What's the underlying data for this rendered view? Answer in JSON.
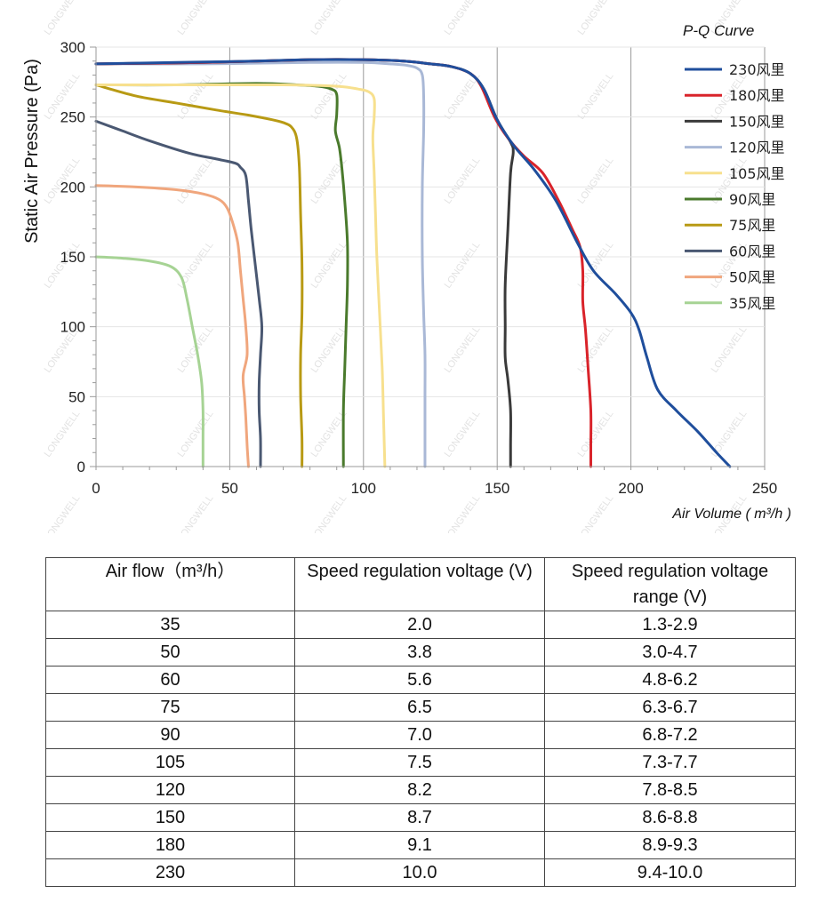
{
  "chart_data": {
    "type": "line",
    "title": "P-Q Curve",
    "xlabel": "Air Volume ( m³/h )",
    "ylabel": "Static Air Pressure  (Pa)",
    "xlim": [
      0,
      250
    ],
    "ylim": [
      0,
      300
    ],
    "x_ticks": [
      0,
      50,
      100,
      150,
      200,
      250
    ],
    "y_ticks": [
      0,
      50,
      100,
      150,
      200,
      250,
      300
    ],
    "grid": "vertical lines at x ticks",
    "legend_position": "right",
    "series": [
      {
        "name": "230风里",
        "color": "#1f4e9c",
        "points": [
          [
            0,
            288
          ],
          [
            30,
            289
          ],
          [
            60,
            290
          ],
          [
            80,
            291
          ],
          [
            100,
            291
          ],
          [
            115,
            290
          ],
          [
            125,
            288
          ],
          [
            133,
            286
          ],
          [
            140,
            281
          ],
          [
            145,
            270
          ],
          [
            150,
            248
          ],
          [
            156,
            230
          ],
          [
            164,
            212
          ],
          [
            172,
            190
          ],
          [
            180,
            160
          ],
          [
            186,
            140
          ],
          [
            194,
            124
          ],
          [
            200,
            110
          ],
          [
            203,
            98
          ],
          [
            206,
            78
          ],
          [
            210,
            55
          ],
          [
            217,
            40
          ],
          [
            225,
            25
          ],
          [
            232,
            10
          ],
          [
            237,
            0
          ]
        ]
      },
      {
        "name": "180风里",
        "color": "#d9232a",
        "points": [
          [
            0,
            288
          ],
          [
            40,
            289
          ],
          [
            80,
            291
          ],
          [
            100,
            291
          ],
          [
            115,
            290
          ],
          [
            125,
            288
          ],
          [
            133,
            286
          ],
          [
            140,
            281
          ],
          [
            144,
            272
          ],
          [
            149,
            250
          ],
          [
            154,
            235
          ],
          [
            160,
            222
          ],
          [
            167,
            210
          ],
          [
            173,
            190
          ],
          [
            178,
            170
          ],
          [
            181,
            157
          ],
          [
            182,
            140
          ],
          [
            182,
            118
          ],
          [
            183,
            98
          ],
          [
            184,
            70
          ],
          [
            185,
            40
          ],
          [
            185,
            15
          ],
          [
            185,
            0
          ]
        ]
      },
      {
        "name": "150风里",
        "color": "#3a3a3a",
        "points": [
          [
            0,
            288
          ],
          [
            40,
            289
          ],
          [
            80,
            291
          ],
          [
            100,
            291
          ],
          [
            115,
            290
          ],
          [
            125,
            288
          ],
          [
            133,
            286
          ],
          [
            140,
            281
          ],
          [
            145,
            270
          ],
          [
            150,
            248
          ],
          [
            155,
            232
          ],
          [
            156,
            225
          ],
          [
            155,
            210
          ],
          [
            154,
            170
          ],
          [
            153,
            130
          ],
          [
            153,
            100
          ],
          [
            153,
            78
          ],
          [
            154,
            62
          ],
          [
            155,
            40
          ],
          [
            155,
            15
          ],
          [
            155,
            0
          ]
        ]
      },
      {
        "name": "120风里",
        "color": "#a9b8d6",
        "points": [
          [
            0,
            288
          ],
          [
            40,
            288
          ],
          [
            80,
            289
          ],
          [
            100,
            289
          ],
          [
            110,
            288
          ],
          [
            116,
            287
          ],
          [
            120,
            285
          ],
          [
            122,
            280
          ],
          [
            122.5,
            265
          ],
          [
            122.5,
            240
          ],
          [
            122,
            200
          ],
          [
            122,
            150
          ],
          [
            122.5,
            110
          ],
          [
            123,
            80
          ],
          [
            123,
            50
          ],
          [
            123,
            25
          ],
          [
            123,
            0
          ]
        ]
      },
      {
        "name": "105风里",
        "color": "#f7e08e",
        "points": [
          [
            0,
            273
          ],
          [
            40,
            273
          ],
          [
            70,
            273
          ],
          [
            90,
            272
          ],
          [
            98,
            270
          ],
          [
            102,
            268
          ],
          [
            104,
            263
          ],
          [
            104,
            250
          ],
          [
            103.5,
            235
          ],
          [
            104,
            210
          ],
          [
            104.5,
            180
          ],
          [
            105,
            150
          ],
          [
            106,
            110
          ],
          [
            107,
            70
          ],
          [
            107.5,
            35
          ],
          [
            108,
            0
          ]
        ]
      },
      {
        "name": "90风里",
        "color": "#4a7a2c",
        "points": [
          [
            0,
            273
          ],
          [
            30,
            273
          ],
          [
            60,
            274
          ],
          [
            75,
            273
          ],
          [
            83,
            272
          ],
          [
            88,
            270
          ],
          [
            90,
            266
          ],
          [
            90,
            252
          ],
          [
            89.5,
            240
          ],
          [
            91,
            228
          ],
          [
            92,
            212
          ],
          [
            93,
            190
          ],
          [
            94,
            160
          ],
          [
            94,
            130
          ],
          [
            93.5,
            100
          ],
          [
            93,
            70
          ],
          [
            92.5,
            40
          ],
          [
            92.5,
            0
          ]
        ]
      },
      {
        "name": "75风里",
        "color": "#b89a14",
        "points": [
          [
            0,
            273
          ],
          [
            15,
            265
          ],
          [
            30,
            260
          ],
          [
            45,
            255
          ],
          [
            58,
            251
          ],
          [
            66,
            248
          ],
          [
            70,
            246
          ],
          [
            73,
            243
          ],
          [
            75,
            235
          ],
          [
            76,
            215
          ],
          [
            76.5,
            180
          ],
          [
            77,
            145
          ],
          [
            77,
            110
          ],
          [
            76.5,
            80
          ],
          [
            76.5,
            50
          ],
          [
            77,
            20
          ],
          [
            77,
            0
          ]
        ]
      },
      {
        "name": "60风里",
        "color": "#4a5872",
        "points": [
          [
            0,
            247
          ],
          [
            10,
            240
          ],
          [
            20,
            233
          ],
          [
            35,
            224
          ],
          [
            45,
            220
          ],
          [
            52,
            217
          ],
          [
            54,
            214
          ],
          [
            56,
            208
          ],
          [
            57,
            190
          ],
          [
            58,
            170
          ],
          [
            59.5,
            145
          ],
          [
            61,
            120
          ],
          [
            62,
            100
          ],
          [
            61.5,
            80
          ],
          [
            61,
            60
          ],
          [
            61,
            40
          ],
          [
            61.5,
            20
          ],
          [
            61.5,
            0
          ]
        ]
      },
      {
        "name": "50风里",
        "color": "#f0a67d",
        "points": [
          [
            0,
            201
          ],
          [
            15,
            200
          ],
          [
            30,
            198
          ],
          [
            40,
            195
          ],
          [
            46,
            191
          ],
          [
            49,
            185
          ],
          [
            51,
            175
          ],
          [
            53,
            160
          ],
          [
            54,
            140
          ],
          [
            55,
            120
          ],
          [
            56,
            100
          ],
          [
            56.5,
            80
          ],
          [
            55,
            65
          ],
          [
            55.5,
            50
          ],
          [
            56,
            35
          ],
          [
            56.5,
            15
          ],
          [
            57,
            0
          ]
        ]
      },
      {
        "name": "35风里",
        "color": "#a6d394",
        "points": [
          [
            0,
            150
          ],
          [
            10,
            149
          ],
          [
            20,
            147
          ],
          [
            28,
            143
          ],
          [
            32,
            135
          ],
          [
            34,
            120
          ],
          [
            36,
            100
          ],
          [
            38,
            80
          ],
          [
            39.5,
            60
          ],
          [
            40,
            40
          ],
          [
            40,
            20
          ],
          [
            40,
            0
          ]
        ]
      }
    ]
  },
  "watermark": "LONGWELL",
  "table": {
    "headers": [
      "Air flow（m³/h）",
      "Speed regulation voltage (V)",
      "Speed regulation voltage range (V)"
    ],
    "rows": [
      {
        "flow": "35",
        "voltage": "2.0",
        "range": "1.3-2.9"
      },
      {
        "flow": "50",
        "voltage": "3.8",
        "range": "3.0-4.7"
      },
      {
        "flow": "60",
        "voltage": "5.6",
        "range": "4.8-6.2"
      },
      {
        "flow": "75",
        "voltage": "6.5",
        "range": "6.3-6.7"
      },
      {
        "flow": "90",
        "voltage": "7.0",
        "range": "6.8-7.2"
      },
      {
        "flow": "105",
        "voltage": "7.5",
        "range": "7.3-7.7"
      },
      {
        "flow": "120",
        "voltage": "8.2",
        "range": "7.8-8.5"
      },
      {
        "flow": "150",
        "voltage": "8.7",
        "range": "8.6-8.8"
      },
      {
        "flow": "180",
        "voltage": "9.1",
        "range": "8.9-9.3"
      },
      {
        "flow": "230",
        "voltage": "10.0",
        "range": "9.4-10.0"
      }
    ]
  }
}
